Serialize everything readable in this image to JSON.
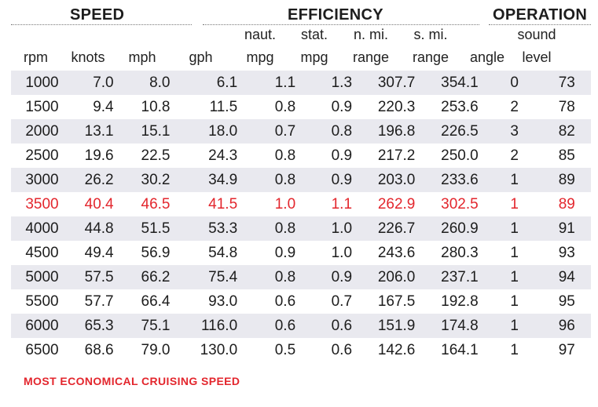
{
  "groups": {
    "speed": "SPEED",
    "efficiency": "EFFICIENCY",
    "operation": "OPERATION"
  },
  "columns": [
    {
      "line1": "",
      "line2": "rpm"
    },
    {
      "line1": "",
      "line2": "knots"
    },
    {
      "line1": "",
      "line2": "mph"
    },
    {
      "line1": "",
      "line2": "gph"
    },
    {
      "line1": "naut.",
      "line2": "mpg"
    },
    {
      "line1": "stat.",
      "line2": "mpg"
    },
    {
      "line1": "n. mi.",
      "line2": "range"
    },
    {
      "line1": "s. mi.",
      "line2": "range"
    },
    {
      "line1": "",
      "line2": "angle"
    },
    {
      "line1": "sound",
      "line2": "level"
    }
  ],
  "rows": [
    [
      "1000",
      "7.0",
      "8.0",
      "6.1",
      "1.1",
      "1.3",
      "307.7",
      "354.1",
      "0",
      "73"
    ],
    [
      "1500",
      "9.4",
      "10.8",
      "11.5",
      "0.8",
      "0.9",
      "220.3",
      "253.6",
      "2",
      "78"
    ],
    [
      "2000",
      "13.1",
      "15.1",
      "18.0",
      "0.7",
      "0.8",
      "196.8",
      "226.5",
      "3",
      "82"
    ],
    [
      "2500",
      "19.6",
      "22.5",
      "24.3",
      "0.8",
      "0.9",
      "217.2",
      "250.0",
      "2",
      "85"
    ],
    [
      "3000",
      "26.2",
      "30.2",
      "34.9",
      "0.8",
      "0.9",
      "203.0",
      "233.6",
      "1",
      "89"
    ],
    [
      "3500",
      "40.4",
      "46.5",
      "41.5",
      "1.0",
      "1.1",
      "262.9",
      "302.5",
      "1",
      "89"
    ],
    [
      "4000",
      "44.8",
      "51.5",
      "53.3",
      "0.8",
      "1.0",
      "226.7",
      "260.9",
      "1",
      "91"
    ],
    [
      "4500",
      "49.4",
      "56.9",
      "54.8",
      "0.9",
      "1.0",
      "243.6",
      "280.3",
      "1",
      "93"
    ],
    [
      "5000",
      "57.5",
      "66.2",
      "75.4",
      "0.8",
      "0.9",
      "206.0",
      "237.1",
      "1",
      "94"
    ],
    [
      "5500",
      "57.7",
      "66.4",
      "93.0",
      "0.6",
      "0.7",
      "167.5",
      "192.8",
      "1",
      "95"
    ],
    [
      "6000",
      "65.3",
      "75.1",
      "116.0",
      "0.6",
      "0.6",
      "151.9",
      "174.8",
      "1",
      "96"
    ],
    [
      "6500",
      "68.6",
      "79.0",
      "130.0",
      "0.5",
      "0.6",
      "142.6",
      "164.1",
      "1",
      "97"
    ]
  ],
  "highlight_row_index": 5,
  "colors": {
    "highlight": "#e3262d",
    "row_shade": "#e9e9ef"
  },
  "footnote": "MOST ECONOMICAL CRUISING SPEED"
}
